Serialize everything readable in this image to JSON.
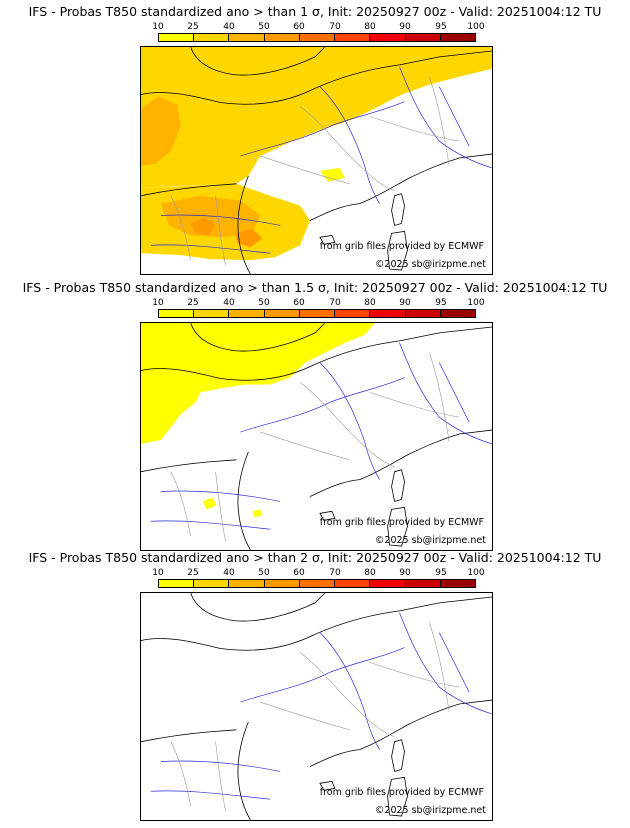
{
  "colorbar": {
    "labels": [
      "10",
      "25",
      "40",
      "50",
      "60",
      "70",
      "80",
      "90",
      "95",
      "100"
    ],
    "colors": [
      "#ffff00",
      "#ffd700",
      "#ffb300",
      "#ff9900",
      "#ff7000",
      "#ff4500",
      "#ee0000",
      "#cc0000",
      "#990000",
      "#660000"
    ]
  },
  "panels": [
    {
      "title": "IFS - Probas T850  standardized ano > than 1 σ, Init: 20250927 00z - Valid: 20251004:12 TU",
      "source_credit": "from grib files provided by ECMWF",
      "copyright": "©2025 sb@irizpme.net"
    },
    {
      "title": "IFS - Probas T850  standardized ano > than 1.5 σ, Init: 20250927 00z - Valid: 20251004:12 TU",
      "source_credit": "from grib files provided by ECMWF",
      "copyright": "©2025 sb@irizpme.net"
    },
    {
      "title": "IFS - Probas T850  standardized ano > than 2 σ, Init: 20250927 00z - Valid: 20251004:12 TU",
      "source_credit": "from grib files provided by ECMWF",
      "copyright": "©2025 sb@irizpme.net"
    }
  ]
}
